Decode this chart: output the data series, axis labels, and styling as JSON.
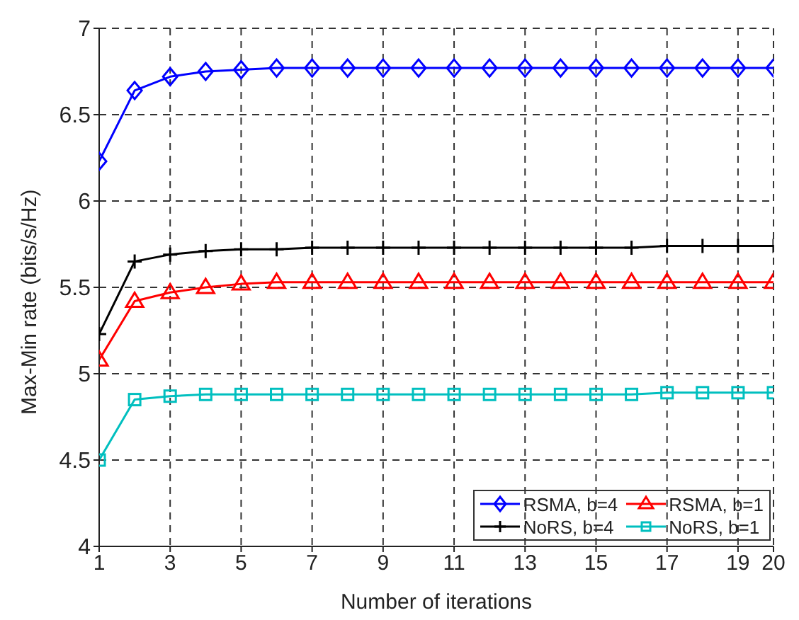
{
  "chart_data": {
    "type": "line",
    "xlabel": "Number of iterations",
    "ylabel": "Max-Min rate (bits/s/Hz)",
    "x": [
      1,
      2,
      3,
      4,
      5,
      6,
      7,
      8,
      9,
      10,
      11,
      12,
      13,
      14,
      15,
      16,
      17,
      18,
      19,
      20
    ],
    "xlim": [
      1,
      20
    ],
    "xticks": [
      1,
      3,
      5,
      7,
      9,
      11,
      13,
      15,
      17,
      19,
      20
    ],
    "ylim": [
      4,
      7
    ],
    "yticks": [
      4,
      4.5,
      5,
      5.5,
      6,
      6.5,
      7
    ],
    "grid": true,
    "legend": "bottom right",
    "line_style": "solid",
    "series": [
      {
        "name": "RSMA, b=4",
        "color": "#0000ff",
        "marker": "diamond",
        "values": [
          6.23,
          6.64,
          6.72,
          6.75,
          6.76,
          6.77,
          6.77,
          6.77,
          6.77,
          6.77,
          6.77,
          6.77,
          6.77,
          6.77,
          6.77,
          6.77,
          6.77,
          6.77,
          6.77,
          6.77
        ]
      },
      {
        "name": "RSMA, b=1",
        "color": "#ff0000",
        "marker": "triangle",
        "values": [
          5.08,
          5.42,
          5.47,
          5.5,
          5.52,
          5.53,
          5.53,
          5.53,
          5.53,
          5.53,
          5.53,
          5.53,
          5.53,
          5.53,
          5.53,
          5.53,
          5.53,
          5.53,
          5.53,
          5.53
        ]
      },
      {
        "name": "NoRS, b=4",
        "color": "#000000",
        "marker": "cross",
        "values": [
          5.23,
          5.65,
          5.69,
          5.71,
          5.72,
          5.72,
          5.73,
          5.73,
          5.73,
          5.73,
          5.73,
          5.73,
          5.73,
          5.73,
          5.73,
          5.73,
          5.74,
          5.74,
          5.74,
          5.74
        ]
      },
      {
        "name": "NoRS, b=1",
        "color": "#00bfbf",
        "marker": "square",
        "values": [
          4.5,
          4.85,
          4.87,
          4.88,
          4.88,
          4.88,
          4.88,
          4.88,
          4.88,
          4.88,
          4.88,
          4.88,
          4.88,
          4.88,
          4.88,
          4.88,
          4.89,
          4.89,
          4.89,
          4.89
        ]
      }
    ]
  }
}
